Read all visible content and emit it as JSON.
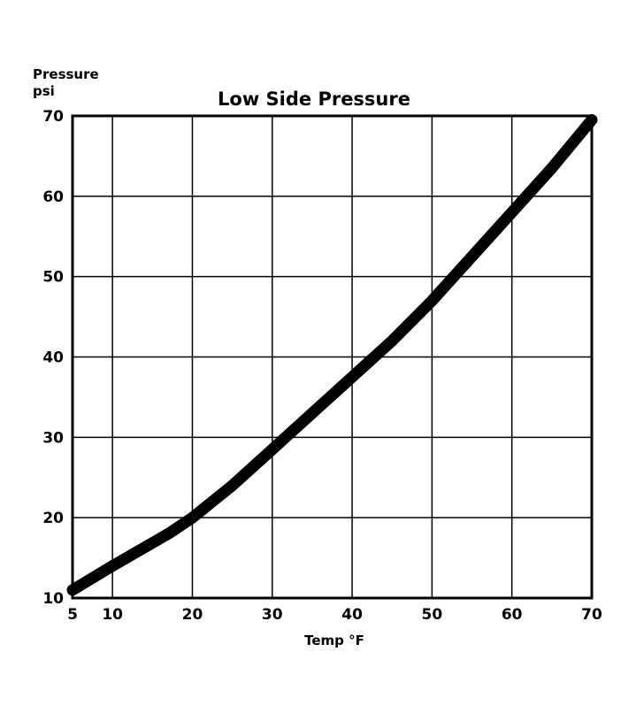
{
  "chart_data": {
    "type": "line",
    "title": "Low Side Pressure",
    "ylabel_line1": "Pressure",
    "ylabel_line2": "psi",
    "xlabel": "Temp °F",
    "xlim": [
      5,
      70
    ],
    "ylim": [
      10,
      70
    ],
    "x_ticks": [
      5,
      10,
      20,
      30,
      40,
      50,
      60,
      70
    ],
    "x_tick_labels": [
      "5",
      "10",
      "20",
      "30",
      "40",
      "50",
      "60",
      "70"
    ],
    "y_ticks": [
      10,
      20,
      30,
      40,
      50,
      60,
      70
    ],
    "y_tick_labels": [
      "10",
      "20",
      "30",
      "40",
      "50",
      "60",
      "70"
    ],
    "grid": true,
    "series": [
      {
        "x": [
          5,
          10,
          17,
          20,
          25,
          30,
          35,
          40,
          45,
          50,
          55,
          60,
          65,
          70
        ],
        "y": [
          11,
          14,
          18,
          20,
          24,
          28.5,
          33,
          37.5,
          42,
          47,
          52.5,
          58,
          63.5,
          69.5
        ]
      }
    ],
    "line_color": "#000000"
  }
}
